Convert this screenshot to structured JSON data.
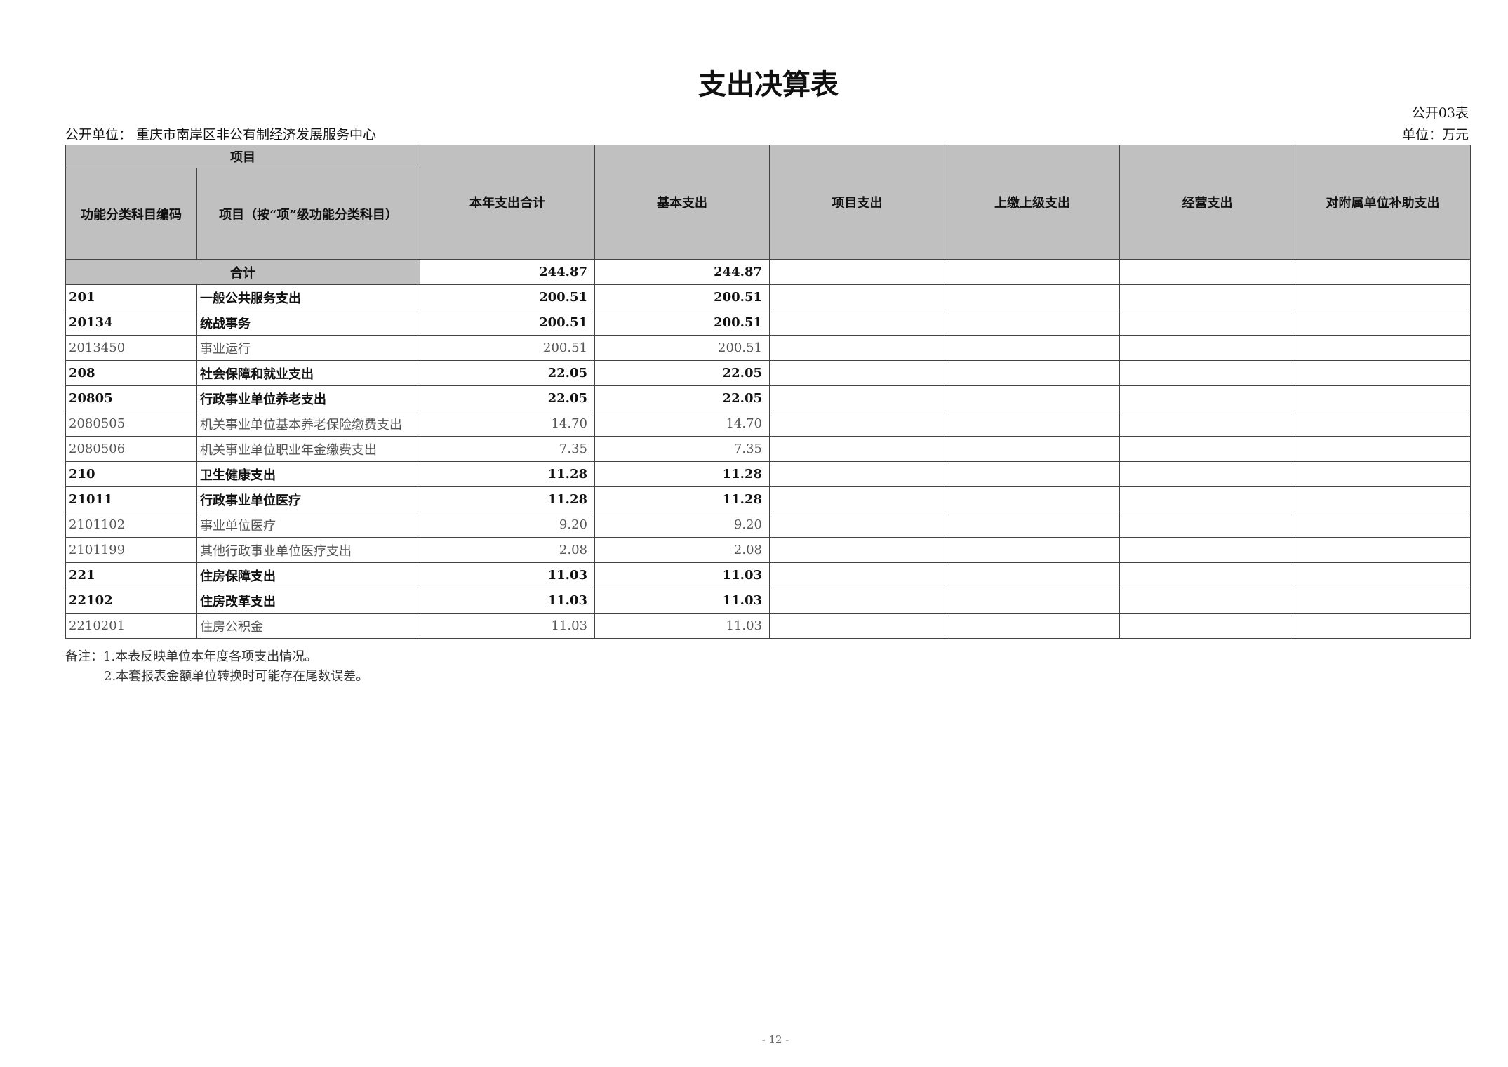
{
  "title": "支出决算表",
  "form_no": "公开03表",
  "unit_label": "公开单位：  重庆市南岸区非公有制经济发展服务中心",
  "currency_unit": "单位：万元",
  "headers": {
    "project": "项目",
    "code": "功能分类科目编码",
    "name": "项目（按“项”级功能分类科目）",
    "total": "本年支出合计",
    "basic": "基本支出",
    "project_exp": "项目支出",
    "upper": "上缴上级支出",
    "business": "经营支出",
    "subsidy": "对附属单位补助支出"
  },
  "total_row": {
    "label": "合计",
    "total": "244.87",
    "basic": "244.87"
  },
  "rows": [
    {
      "code": "201",
      "name": "一般公共服务支出",
      "total": "200.51",
      "basic": "200.51",
      "level": "bold"
    },
    {
      "code": "20134",
      "name": "统战事务",
      "total": "200.51",
      "basic": "200.51",
      "level": "bold"
    },
    {
      "code": "2013450",
      "name": "事业运行",
      "total": "200.51",
      "basic": "200.51",
      "level": "light"
    },
    {
      "code": "208",
      "name": "社会保障和就业支出",
      "total": "22.05",
      "basic": "22.05",
      "level": "bold"
    },
    {
      "code": "20805",
      "name": "行政事业单位养老支出",
      "total": "22.05",
      "basic": "22.05",
      "level": "bold"
    },
    {
      "code": "2080505",
      "name": "机关事业单位基本养老保险缴费支出",
      "total": "14.70",
      "basic": "14.70",
      "level": "light"
    },
    {
      "code": "2080506",
      "name": "机关事业单位职业年金缴费支出",
      "total": "7.35",
      "basic": "7.35",
      "level": "light"
    },
    {
      "code": "210",
      "name": "卫生健康支出",
      "total": "11.28",
      "basic": "11.28",
      "level": "bold"
    },
    {
      "code": "21011",
      "name": "行政事业单位医疗",
      "total": "11.28",
      "basic": "11.28",
      "level": "bold"
    },
    {
      "code": "2101102",
      "name": "事业单位医疗",
      "total": "9.20",
      "basic": "9.20",
      "level": "light"
    },
    {
      "code": "2101199",
      "name": "其他行政事业单位医疗支出",
      "total": "2.08",
      "basic": "2.08",
      "level": "light"
    },
    {
      "code": "221",
      "name": "住房保障支出",
      "total": "11.03",
      "basic": "11.03",
      "level": "bold"
    },
    {
      "code": "22102",
      "name": "住房改革支出",
      "total": "11.03",
      "basic": "11.03",
      "level": "bold"
    },
    {
      "code": "2210201",
      "name": "住房公积金",
      "total": "11.03",
      "basic": "11.03",
      "level": "light"
    }
  ],
  "notes": [
    "备注：1.本表反映单位本年度各项支出情况。",
    "2.本套报表金额单位转换时可能存在尾数误差。"
  ],
  "page_number": "- 12 -"
}
